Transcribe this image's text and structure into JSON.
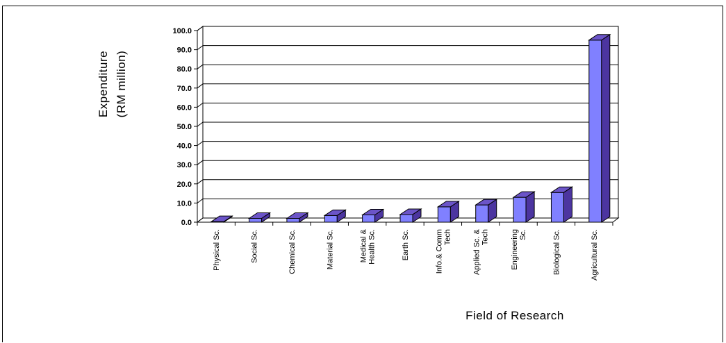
{
  "chart_data": {
    "type": "bar",
    "ylabel_lines": [
      "Expenditure",
      "(RM million)"
    ],
    "xlabel": "Field of Research",
    "ylim": [
      0,
      100
    ],
    "y_ticks": [
      "0.0",
      "10.0",
      "20.0",
      "30.0",
      "40.0",
      "50.0",
      "60.0",
      "70.0",
      "80.0",
      "90.0",
      "100.0"
    ],
    "categories": [
      [
        "Physical Sc."
      ],
      [
        "Social Sc."
      ],
      [
        "Chemical Sc."
      ],
      [
        "Material Sc."
      ],
      [
        "Medical &",
        "Health Sc."
      ],
      [
        "Earth Sc."
      ],
      [
        "Info.& Comm",
        "Tech"
      ],
      [
        "Applied Sc. &",
        "Tech"
      ],
      [
        "Engineering",
        "Sc."
      ],
      [
        "Biological Sc."
      ],
      [
        "Agricultural Sc."
      ]
    ],
    "values": [
      0.3,
      2.0,
      2.0,
      3.5,
      3.8,
      4.0,
      8.0,
      9.0,
      13.0,
      15.5,
      95.0
    ],
    "grid": true,
    "colors": {
      "bar_front": "#8080ff",
      "bar_side": "#4c35a0",
      "bar_top": "#6b54c8",
      "outline": "#000000"
    }
  }
}
